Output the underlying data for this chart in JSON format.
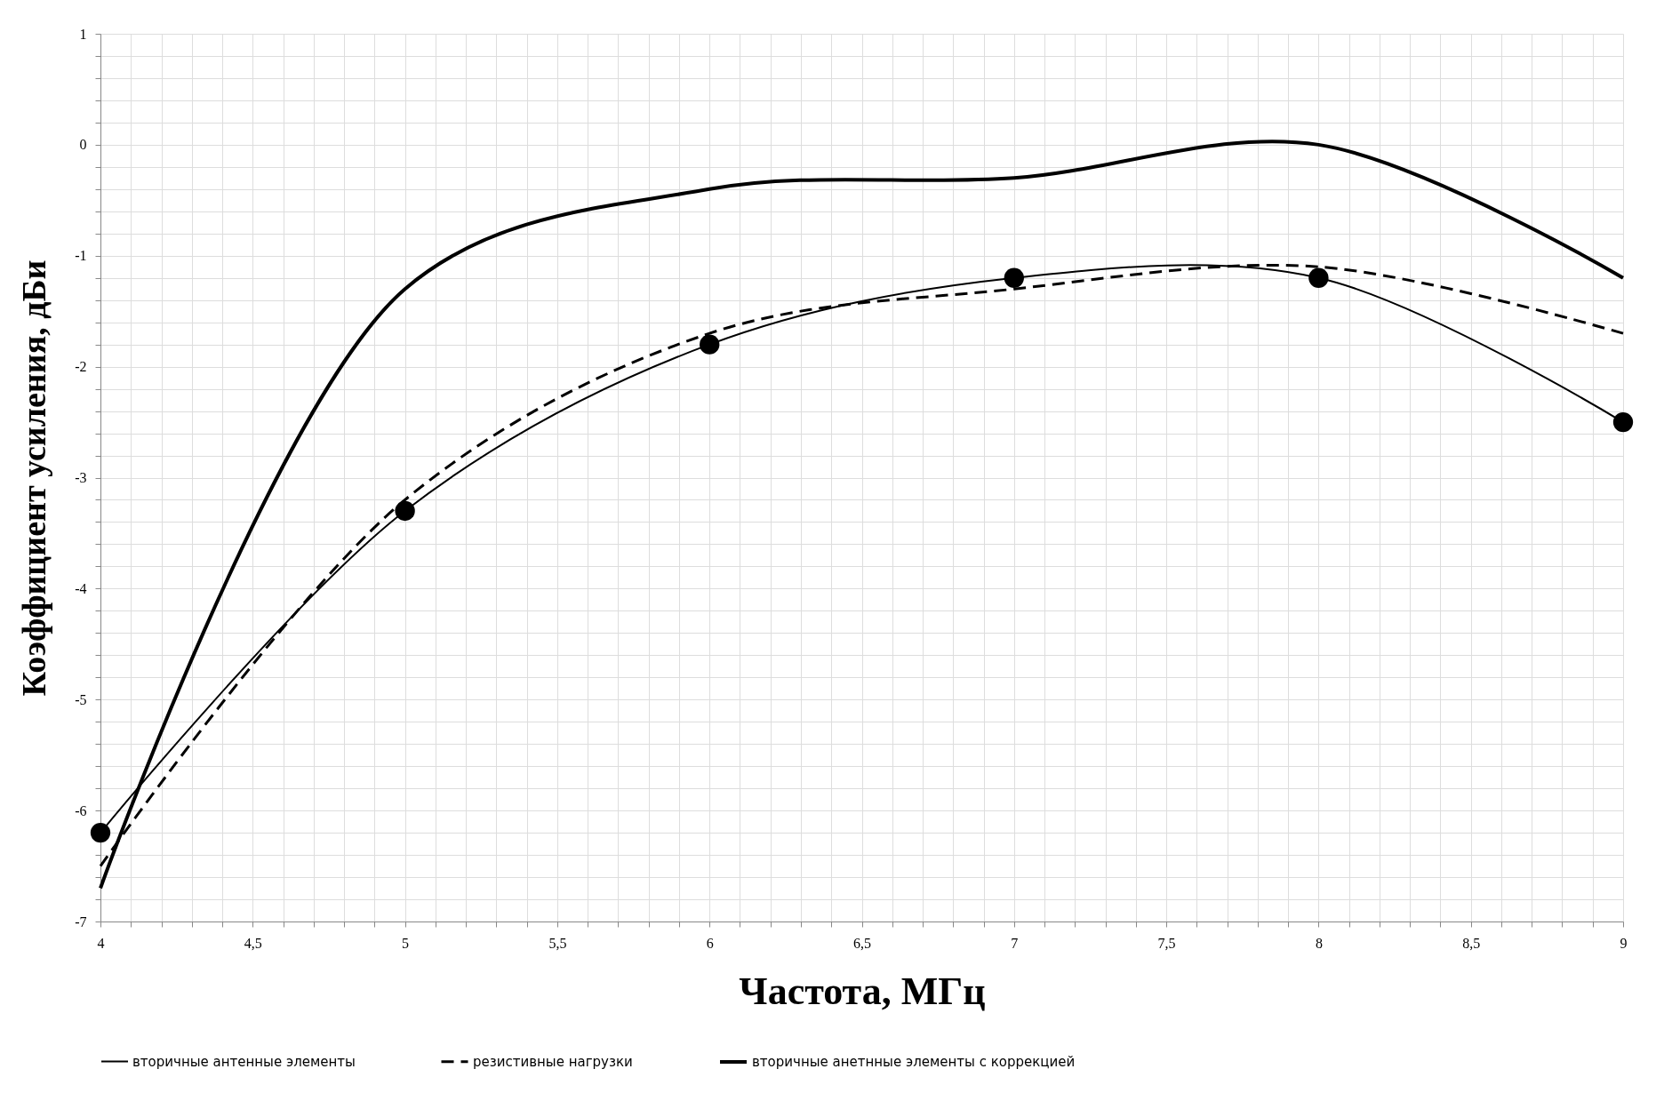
{
  "chart_data": {
    "type": "line",
    "xlabel": "Частота, МГц",
    "ylabel": "Коэффициент усиления, дБи",
    "x": [
      4,
      5,
      6,
      7,
      8,
      9
    ],
    "series": [
      {
        "name": "вторичные антенные элементы",
        "color": "#000000",
        "marker": "circle",
        "line_style": "solid",
        "values": [
          -6.2,
          -3.3,
          -1.8,
          -1.2,
          -1.2,
          -2.5
        ]
      },
      {
        "name": "резистивные нагрузки",
        "color": "#000000",
        "marker": "none",
        "line_style": "dashed",
        "values": [
          -6.5,
          -3.2,
          -1.7,
          -1.3,
          -1.1,
          -1.7
        ]
      },
      {
        "name": "вторичные анетнные элементы с коррекцией",
        "color": "#000000",
        "marker": "none",
        "line_style": "solid",
        "values": [
          -6.7,
          -1.3,
          -0.4,
          -0.3,
          0.0,
          -1.2
        ]
      }
    ],
    "xlim": [
      4,
      9
    ],
    "ylim": [
      -7,
      1
    ],
    "xticks": [
      4,
      {
        "value": 4.1,
        "label": null
      },
      {
        "value": 4.2,
        "label": null
      },
      {
        "value": 4.3,
        "label": null
      },
      {
        "value": 4.4,
        "label": null
      },
      {
        "value": 4.5,
        "label": "4,5"
      },
      {
        "value": 4.6,
        "label": null
      },
      {
        "value": 4.7,
        "label": null
      },
      {
        "value": 4.8,
        "label": null
      },
      {
        "value": 4.9,
        "label": null
      },
      5,
      {
        "value": 5.1,
        "label": null
      },
      {
        "value": 5.2,
        "label": null
      },
      {
        "value": 5.3,
        "label": null
      },
      {
        "value": 5.4,
        "label": null
      },
      {
        "value": 5.5,
        "label": "5,5"
      },
      {
        "value": 5.6,
        "label": null
      },
      {
        "value": 5.7,
        "label": null
      },
      {
        "value": 5.8,
        "label": null
      },
      {
        "value": 5.9,
        "label": null
      },
      6,
      {
        "value": 6.1,
        "label": null
      },
      {
        "value": 6.2,
        "label": null
      },
      {
        "value": 6.3,
        "label": null
      },
      {
        "value": 6.4,
        "label": null
      },
      {
        "value": 6.5,
        "label": "6,5"
      },
      {
        "value": 6.6,
        "label": null
      },
      {
        "value": 6.7,
        "label": null
      },
      {
        "value": 6.8,
        "label": null
      },
      {
        "value": 6.9,
        "label": null
      },
      7,
      {
        "value": 7.1,
        "label": null
      },
      {
        "value": 7.2,
        "label": null
      },
      {
        "value": 7.3,
        "label": null
      },
      {
        "value": 7.4,
        "label": null
      },
      {
        "value": 7.5,
        "label": "7,5"
      },
      {
        "value": 7.6,
        "label": null
      },
      {
        "value": 7.7,
        "label": null
      },
      {
        "value": 7.8,
        "label": null
      },
      {
        "value": 7.9,
        "label": null
      },
      8,
      {
        "value": 8.1,
        "label": null
      },
      {
        "value": 8.2,
        "label": null
      },
      {
        "value": 8.3,
        "label": null
      },
      {
        "value": 8.4,
        "label": null
      },
      {
        "value": 8.5,
        "label": "8,5"
      },
      {
        "value": 8.6,
        "label": null
      },
      {
        "value": 8.7,
        "label": null
      },
      {
        "value": 8.8,
        "label": null
      },
      {
        "value": 8.9,
        "label": null
      },
      9
    ],
    "yticks": [
      -7,
      {
        "value": -6.8,
        "label": null
      },
      {
        "value": -6.6,
        "label": null
      },
      {
        "value": -6.4,
        "label": null
      },
      {
        "value": -6.2,
        "label": null
      },
      -6,
      {
        "value": -5.8,
        "label": null
      },
      {
        "value": -5.6,
        "label": null
      },
      {
        "value": -5.4,
        "label": null
      },
      {
        "value": -5.2,
        "label": null
      },
      -5,
      {
        "value": -4.8,
        "label": null
      },
      {
        "value": -4.6,
        "label": null
      },
      {
        "value": -4.4,
        "label": null
      },
      {
        "value": -4.2,
        "label": null
      },
      -4,
      {
        "value": -3.8,
        "label": null
      },
      {
        "value": -3.6,
        "label": null
      },
      {
        "value": -3.4,
        "label": null
      },
      {
        "value": -3.2,
        "label": null
      },
      -3,
      {
        "value": -2.8,
        "label": null
      },
      {
        "value": -2.6,
        "label": null
      },
      {
        "value": -2.4,
        "label": null
      },
      {
        "value": -2.2,
        "label": null
      },
      -2,
      {
        "value": -1.8,
        "label": null
      },
      {
        "value": -1.6,
        "label": null
      },
      {
        "value": -1.4,
        "label": null
      },
      {
        "value": -1.2,
        "label": null
      },
      -1,
      {
        "value": -0.8,
        "label": null
      },
      {
        "value": -0.6,
        "label": null
      },
      {
        "value": -0.4,
        "label": null
      },
      {
        "value": -0.2,
        "label": null
      },
      0,
      {
        "value": 0.2,
        "label": null
      },
      {
        "value": 0.4,
        "label": null
      },
      {
        "value": 0.6,
        "label": null
      },
      {
        "value": 0.8,
        "label": null
      },
      1
    ],
    "grid": true,
    "legend": "bottom"
  }
}
